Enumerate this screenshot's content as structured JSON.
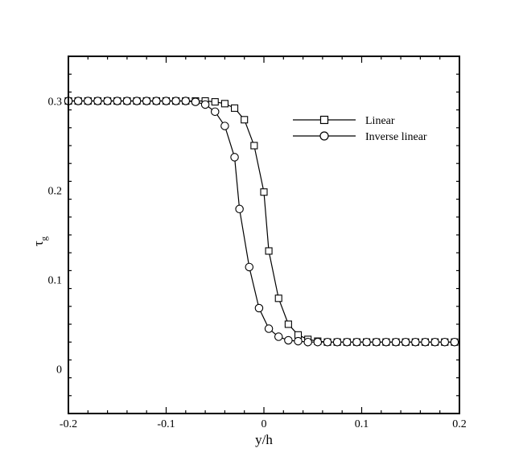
{
  "chart_data": {
    "type": "line",
    "xlabel": "y/h",
    "ylabel": {
      "base": "τ",
      "subscript": "g"
    },
    "xlim": [
      -0.2,
      0.2
    ],
    "ylim": [
      -0.05,
      0.35
    ],
    "xticks": [
      -0.2,
      -0.1,
      0,
      0.1,
      0.2
    ],
    "xtick_labels": [
      "-0.2",
      "-0.1",
      "0",
      "0.1",
      "0.2"
    ],
    "yticks": [
      0,
      0.1,
      0.2,
      0.3
    ],
    "ytick_labels": [
      "0",
      "0.1",
      "0.2",
      "0.3"
    ],
    "grid": false,
    "legend_position": "top-right",
    "series": [
      {
        "name": "Linear",
        "marker": "square",
        "x": [
          -0.2,
          -0.19,
          -0.18,
          -0.17,
          -0.16,
          -0.15,
          -0.14,
          -0.13,
          -0.12,
          -0.11,
          -0.1,
          -0.09,
          -0.08,
          -0.07,
          -0.06,
          -0.05,
          -0.04,
          -0.03,
          -0.02,
          -0.01,
          0,
          0.005,
          0.015,
          0.025,
          0.035,
          0.045,
          0.055,
          0.065,
          0.075,
          0.085,
          0.095,
          0.105,
          0.115,
          0.125,
          0.135,
          0.145,
          0.155,
          0.165,
          0.175,
          0.185,
          0.195
        ],
        "y": [
          0.3,
          0.3,
          0.3,
          0.3,
          0.3,
          0.3,
          0.3,
          0.3,
          0.3,
          0.3,
          0.3,
          0.3,
          0.3,
          0.3,
          0.3,
          0.299,
          0.297,
          0.292,
          0.279,
          0.25,
          0.198,
          0.132,
          0.079,
          0.05,
          0.038,
          0.033,
          0.031,
          0.03,
          0.03,
          0.03,
          0.03,
          0.03,
          0.03,
          0.03,
          0.03,
          0.03,
          0.03,
          0.03,
          0.03,
          0.03,
          0.03
        ]
      },
      {
        "name": "Inverse linear",
        "marker": "circle",
        "x": [
          -0.2,
          -0.19,
          -0.18,
          -0.17,
          -0.16,
          -0.15,
          -0.14,
          -0.13,
          -0.12,
          -0.11,
          -0.1,
          -0.09,
          -0.08,
          -0.07,
          -0.06,
          -0.05,
          -0.04,
          -0.03,
          -0.025,
          -0.015,
          -0.005,
          0.005,
          0.015,
          0.025,
          0.035,
          0.045,
          0.055,
          0.065,
          0.075,
          0.085,
          0.095,
          0.105,
          0.115,
          0.125,
          0.135,
          0.145,
          0.155,
          0.165,
          0.175,
          0.185,
          0.195
        ],
        "y": [
          0.3,
          0.3,
          0.3,
          0.3,
          0.3,
          0.3,
          0.3,
          0.3,
          0.3,
          0.3,
          0.3,
          0.3,
          0.3,
          0.299,
          0.296,
          0.288,
          0.272,
          0.237,
          0.179,
          0.114,
          0.068,
          0.045,
          0.036,
          0.032,
          0.031,
          0.03,
          0.03,
          0.03,
          0.03,
          0.03,
          0.03,
          0.03,
          0.03,
          0.03,
          0.03,
          0.03,
          0.03,
          0.03,
          0.03,
          0.03,
          0.03
        ]
      }
    ]
  }
}
